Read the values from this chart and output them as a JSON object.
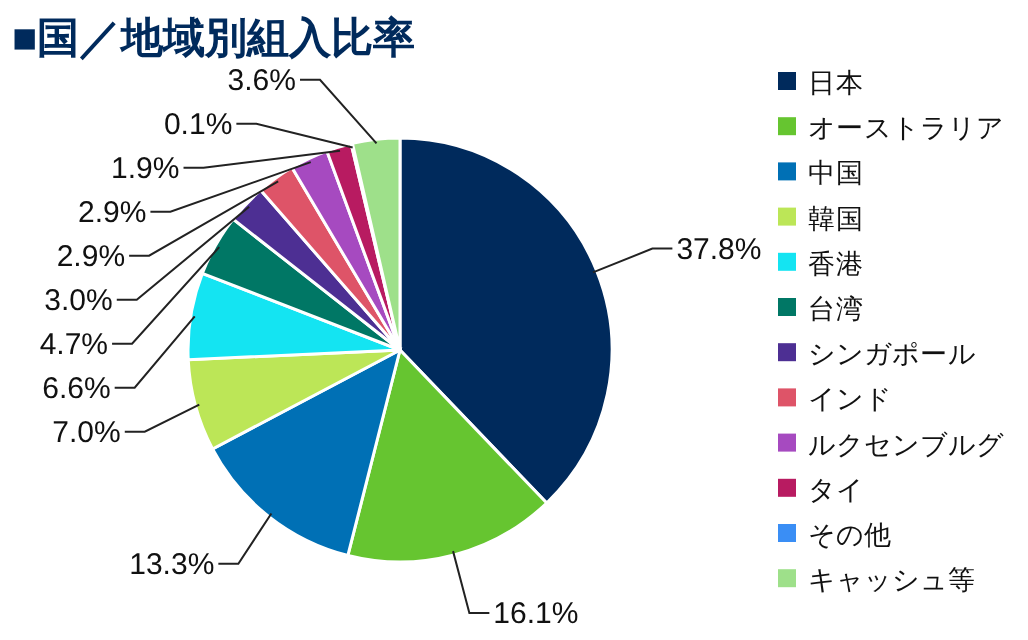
{
  "chart_data": {
    "type": "pie",
    "title": "■国／地域別組入比率",
    "categories": [
      "日本",
      "オーストラリア",
      "中国",
      "韓国",
      "香港",
      "台湾",
      "シンガポール",
      "インド",
      "ルクセンブルグ",
      "タイ",
      "その他",
      "キャッシュ等"
    ],
    "values": [
      37.8,
      16.1,
      13.3,
      7.0,
      6.6,
      4.7,
      3.0,
      2.9,
      2.9,
      1.9,
      0.1,
      3.6
    ],
    "value_labels": [
      "37.8%",
      "16.1%",
      "13.3%",
      "7.0%",
      "6.6%",
      "4.7%",
      "3.0%",
      "2.9%",
      "2.9%",
      "1.9%",
      "0.1%",
      "3.6%"
    ],
    "colors": [
      "#002a5c",
      "#66c530",
      "#0070b5",
      "#bce657",
      "#14e4f2",
      "#007765",
      "#4d2f93",
      "#de5468",
      "#a64ac0",
      "#b81b61",
      "#3a8ef5",
      "#9ee08a"
    ],
    "legend": "right"
  }
}
